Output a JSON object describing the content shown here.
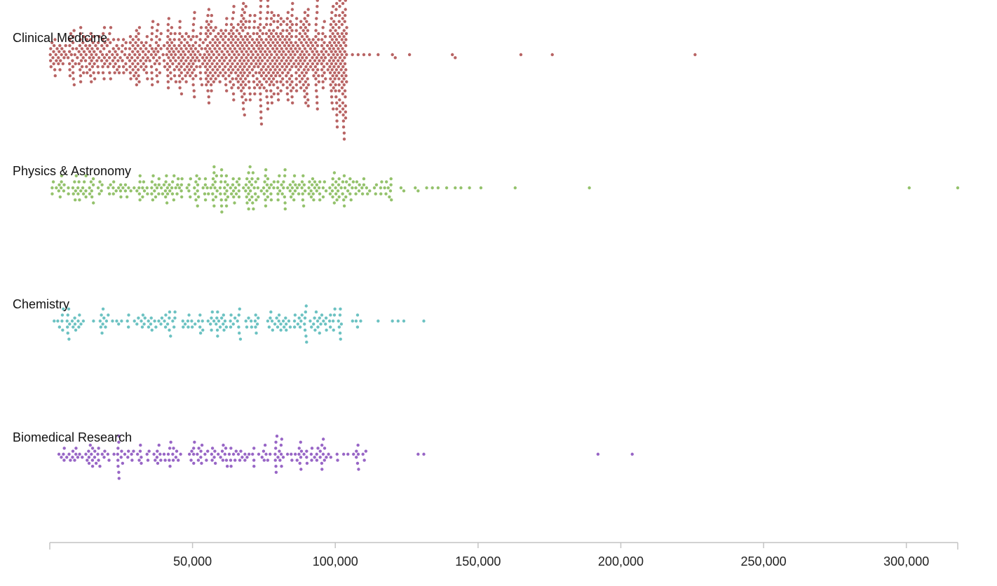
{
  "chart_data": {
    "type": "scatter",
    "subtype": "beeswarm",
    "title": "",
    "xlabel": "",
    "ylabel": "",
    "xlim": [
      0,
      318000
    ],
    "x_tick_values": [
      50000,
      100000,
      150000,
      200000,
      250000,
      300000
    ],
    "x_tick_labels": [
      "50,000",
      "100,000",
      "150,000",
      "200,000",
      "250,000",
      "300,000"
    ],
    "grid": false,
    "legend": "none",
    "series": [
      {
        "name": "Clinical Medicine",
        "color": "#b86464",
        "count_estimate": 1100,
        "profile_breaks": [
          0,
          10000,
          20000,
          30000,
          40000,
          50000,
          60000,
          70000,
          80000,
          90000,
          100000,
          104000
        ],
        "profile_weights": [
          5,
          7,
          6,
          7,
          9,
          11,
          14,
          15,
          14,
          12,
          10
        ],
        "outliers": [
          104000,
          106000,
          108000,
          110000,
          112000,
          115000,
          120000,
          121000,
          126000,
          141000,
          142000,
          165000,
          176000,
          226000
        ]
      },
      {
        "name": "Physics & Astronomy",
        "color": "#94c26c",
        "count_estimate": 340,
        "profile_breaks": [
          0,
          10000,
          20000,
          30000,
          40000,
          50000,
          60000,
          70000,
          80000,
          90000,
          100000,
          110000,
          120000
        ],
        "profile_weights": [
          6,
          6,
          5,
          7,
          8,
          9,
          11,
          10,
          9,
          8,
          9,
          5
        ],
        "outliers": [
          123000,
          124000,
          128000,
          129000,
          132000,
          134000,
          136000,
          139000,
          142000,
          144000,
          147000,
          151000,
          163000,
          189000,
          301000,
          318000
        ]
      },
      {
        "name": "Chemistry",
        "color": "#6cc2c2",
        "count_estimate": 200,
        "profile_breaks": [
          0,
          10000,
          20000,
          30000,
          40000,
          50000,
          60000,
          70000,
          80000,
          90000,
          100000,
          110000
        ],
        "profile_weights": [
          7,
          5,
          3,
          6,
          7,
          7,
          7,
          6,
          9,
          8,
          4
        ],
        "outliers": [
          115000,
          120000,
          122000,
          124000,
          131000
        ]
      },
      {
        "name": "Biomedical Research",
        "color": "#9866c6",
        "count_estimate": 210,
        "profile_breaks": [
          0,
          10000,
          20000,
          30000,
          40000,
          50000,
          60000,
          70000,
          80000,
          90000,
          100000,
          111000
        ],
        "profile_weights": [
          5,
          8,
          7,
          6,
          6,
          8,
          8,
          7,
          8,
          7,
          5
        ],
        "outliers": [
          129000,
          131000,
          192000,
          204000
        ]
      }
    ]
  }
}
